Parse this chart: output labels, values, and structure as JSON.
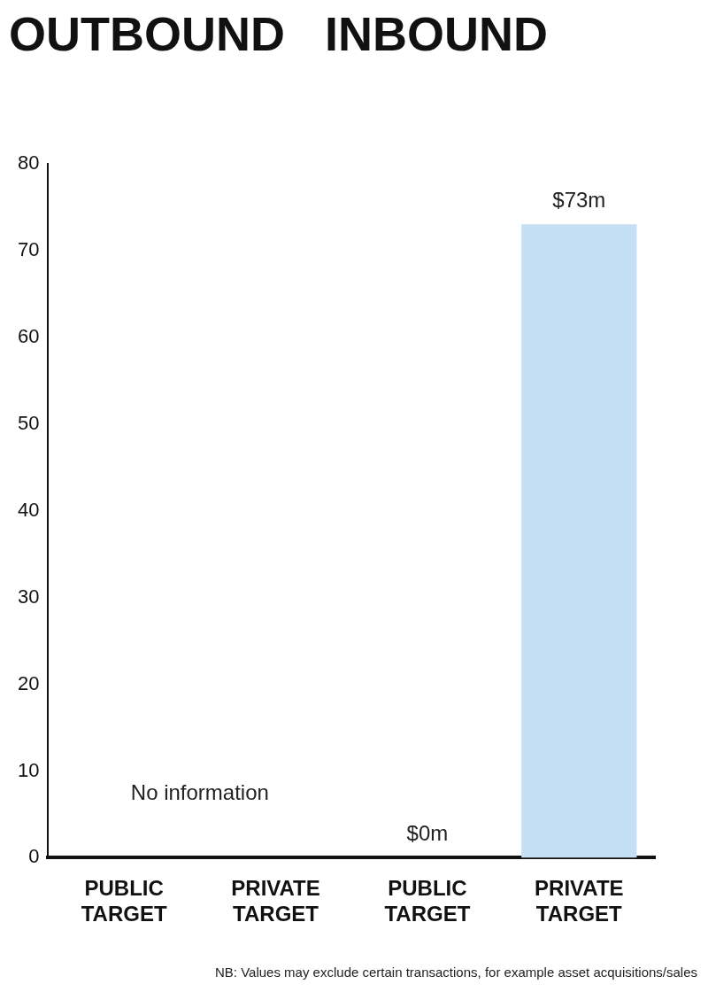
{
  "chart_data": {
    "type": "bar",
    "title": "OUTBOUND   INBOUND",
    "categories": [
      "PUBLIC\nTARGET",
      "PRIVATE\nTARGET",
      "PUBLIC\nTARGET",
      "PRIVATE\nTARGET"
    ],
    "values": [
      null,
      null,
      0,
      73
    ],
    "color": "#c5dff4",
    "value_labels": [
      null,
      null,
      "$0m",
      "$73m"
    ],
    "ylim": [
      0,
      80
    ],
    "yticks": [
      0,
      10,
      20,
      30,
      40,
      50,
      60,
      70,
      80
    ],
    "grid": false,
    "legend": false,
    "annotations": [
      "No information",
      "NB: Values may exclude certain transactions, for example asset acquisitions/sales"
    ]
  }
}
